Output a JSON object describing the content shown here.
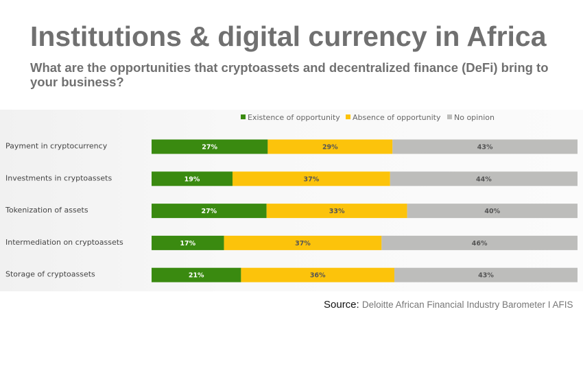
{
  "title": "Institutions & digital currency in Africa",
  "subtitle": "What are the opportunities that cryptoassets and decentralized finance (DeFi) bring to your business?",
  "source_label": "Source:",
  "source_value": "Deloitte African Financial Industry Barometer I AFIS",
  "chart_data": {
    "type": "bar",
    "orientation": "horizontal",
    "stacked": true,
    "categories": [
      "Payment in cryptocurrency",
      "Investments in cryptoassets",
      "Tokenization of assets",
      "Intermediation on cryptoassets",
      "Storage of cryptoassets"
    ],
    "series": [
      {
        "name": "Existence of opportunity",
        "color": "#3a8a10",
        "values": [
          27,
          19,
          27,
          17,
          21
        ]
      },
      {
        "name": "Absence of opportunity",
        "color": "#fcc30b",
        "values": [
          29,
          37,
          33,
          37,
          36
        ]
      },
      {
        "name": "No opinion",
        "color": "#bdbdbb",
        "values": [
          43,
          44,
          40,
          46,
          43
        ]
      }
    ],
    "data_label_suffix": "%",
    "legend_position": "top",
    "grid": false
  }
}
